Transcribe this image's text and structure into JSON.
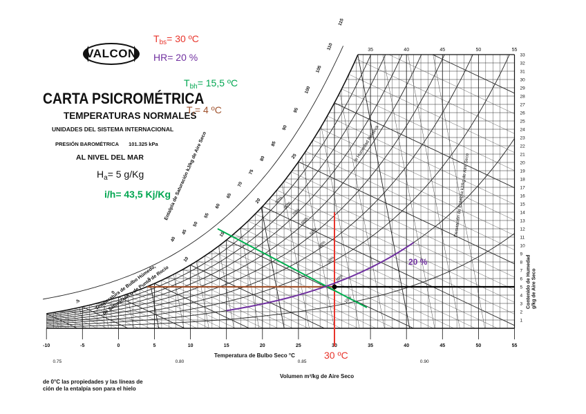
{
  "header": {
    "logo": "VALCON",
    "title": "CARTA PSICROMÉTRICA",
    "subtitle": "TEMPERATURAS NORMALES",
    "units": "UNIDADES DEL SISTEMA INTERNACIONAL",
    "pressure_label": "PRESIÓN BAROMÉTRICA",
    "pressure_value": "101.325 kPa",
    "sea_level": "AL NIVEL DEL MAR"
  },
  "annotations": {
    "tbs": {
      "symbol": "T",
      "sub": "bs",
      "text": "= 30 ºC",
      "color": "#e8332a"
    },
    "hr": {
      "text": "HR= 20 %",
      "color": "#7030a0"
    },
    "tbh": {
      "symbol": "T",
      "sub": "bh",
      "text": "= 15,5 ºC",
      "color": "#00a650"
    },
    "tr": {
      "symbol": "T",
      "sub": "r",
      "text": "= 4 ºC",
      "color": "#a0522d"
    },
    "ha": {
      "symbol": "H",
      "sub": "a",
      "text": "= 5 g/Kg",
      "color": "#111111"
    },
    "ih": {
      "text": "i/h= 43,5 Kj/Kg",
      "color": "#00a650"
    },
    "bottom_temp": {
      "text": "30 ºC",
      "color": "#e8332a"
    },
    "hr_curve_label": {
      "text": "20 %",
      "color": "#7030a0"
    }
  },
  "chart_labels": {
    "x_axis_title": "Temperatura de Bulbo Seco   °C",
    "y_axis_title_line1": "Contenido de Humedad",
    "y_axis_title_line2": "g/kg de Aire Seco",
    "volume_title": "Volumen    m³/kg de Aire Seco",
    "enthalpy_title": "Entalpía de Saturación  kJ/kg de Aire Seco",
    "wet_bulb_title_line1": "Temperatura de Bulbo Húmedo,",
    "wet_bulb_title_line2": "de Saturación o de Punto de Rocío",
    "rh_title": "% Humedad Relativa",
    "enthalpy_dev_title": "Desviación de Entalpía  kJ/kg de Aire Seco",
    "bottom_note_line1": "de 0°C las propiedades y las líneas de",
    "bottom_note_line2": "ción de la entalpía son para el hielo"
  },
  "chart_data": {
    "type": "psychrometric",
    "x_ticks": [
      "-10",
      "-5",
      "0",
      "5",
      "10",
      "15",
      "20",
      "25",
      "30",
      "35",
      "40",
      "45",
      "50",
      "55"
    ],
    "top_x_ticks": [
      "35",
      "40",
      "45",
      "50",
      "55"
    ],
    "y_ticks": [
      "1",
      "2",
      "3",
      "4",
      "5",
      "6",
      "7",
      "8",
      "9",
      "10",
      "11",
      "12",
      "13",
      "14",
      "15",
      "16",
      "17",
      "18",
      "19",
      "20",
      "21",
      "22",
      "23",
      "24",
      "25",
      "26",
      "27",
      "28",
      "29",
      "30",
      "31",
      "32",
      "33"
    ],
    "volume_ticks": [
      "0.75",
      "0.80",
      "0.85",
      "0.90"
    ],
    "enthalpy_ticks": [
      "40",
      "45",
      "50",
      "55",
      "60",
      "65",
      "70",
      "75",
      "80",
      "85",
      "90",
      "95",
      "100",
      "105",
      "110",
      "115"
    ],
    "wet_bulb_ticks": [
      "-5",
      "0",
      "5",
      "10",
      "15",
      "20",
      "25"
    ],
    "rh_labels": [
      "90%",
      "80%",
      "70%",
      "60%",
      "50%",
      "40%",
      "30%",
      "20%",
      "10%"
    ],
    "highlight": {
      "dry_bulb_c": 30,
      "relative_humidity_pct": 20,
      "wet_bulb_c": 15.5,
      "dew_point_c": 4,
      "humidity_ratio_g_per_kg": 5,
      "enthalpy_kj_per_kg": 43.5
    },
    "xlim": [
      -10,
      55
    ],
    "ylim": [
      0,
      33
    ]
  }
}
